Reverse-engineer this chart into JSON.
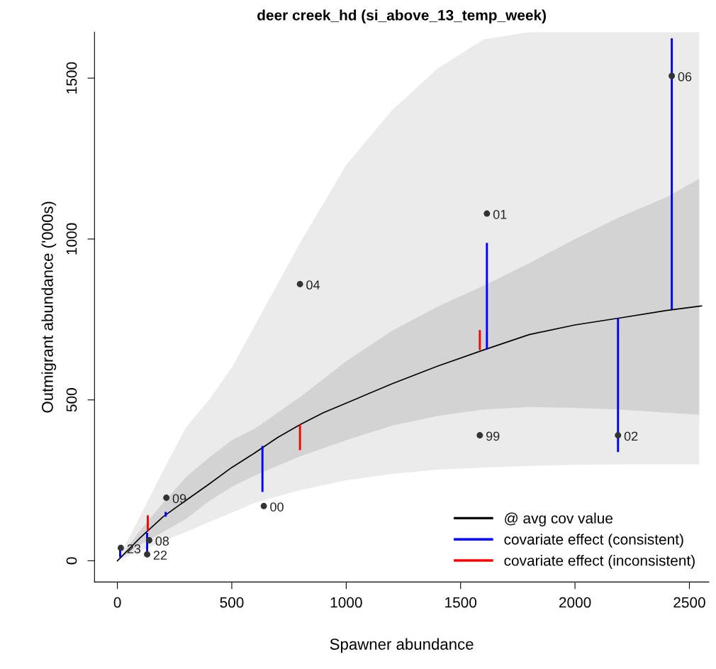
{
  "chart_data": {
    "type": "line",
    "title": "deer creek_hd (si_above_13_temp_week)",
    "xlabel": "Spawner abundance",
    "ylabel": "Outmigrant abundance ('000s)",
    "xlim": [
      -100,
      2585
    ],
    "ylim": [
      -66,
      1643
    ],
    "xticks": [
      0,
      500,
      1000,
      1500,
      2000,
      2500
    ],
    "yticks": [
      0,
      500,
      1000,
      1500
    ],
    "grid": false,
    "legend": "bottom right",
    "series": [
      {
        "color": "#ebebeb",
        "x": [
          0,
          100,
          200,
          300,
          400,
          500,
          600,
          800,
          1000,
          1200,
          1400,
          1600,
          1800,
          2000,
          2200,
          2400,
          2543
        ],
        "values": [
          null,
          null,
          null,
          null,
          null,
          null,
          null,
          null,
          null,
          null,
          null,
          null,
          null,
          null,
          null,
          null,
          null
        ],
        "lower": [
          0,
          30,
          60,
          90,
          120,
          150,
          180,
          220,
          250,
          270,
          283,
          290,
          295,
          298,
          300,
          300,
          300
        ],
        "upper": [
          0,
          140,
          280,
          415,
          500,
          600,
          730,
          990,
          1230,
          1400,
          1530,
          1620,
          1643,
          1643,
          1643,
          1643,
          1643
        ]
      },
      {
        "color": "#d3d3d3",
        "x": [
          0,
          100,
          200,
          300,
          400,
          500,
          600,
          800,
          1000,
          1200,
          1400,
          1600,
          1800,
          2000,
          2200,
          2400,
          2543
        ],
        "values": [
          null,
          null,
          null,
          null,
          null,
          null,
          null,
          null,
          null,
          null,
          null,
          null,
          null,
          null,
          null,
          null,
          null
        ],
        "lower": [
          0,
          50,
          90,
          130,
          185,
          230,
          265,
          325,
          375,
          420,
          450,
          470,
          478,
          475,
          470,
          460,
          454
        ],
        "upper": [
          0,
          95,
          180,
          260,
          320,
          375,
          410,
          510,
          620,
          715,
          790,
          855,
          925,
          1000,
          1070,
          1130,
          1187
        ]
      },
      {
        "name": "@ avg cov value",
        "type": "line",
        "color": "#000000",
        "x": [
          0,
          100,
          200,
          300,
          400,
          500,
          600,
          700,
          800,
          900,
          1000,
          1200,
          1400,
          1600,
          1800,
          2000,
          2200,
          2400,
          2553
        ],
        "values": [
          0,
          72,
          137,
          188,
          238,
          290,
          335,
          383,
          424,
          460,
          490,
          550,
          605,
          655,
          703,
          733,
          755,
          778,
          792
        ]
      },
      {
        "name": "covariate effect (consistent)",
        "type": "bar",
        "color": "#0000ff",
        "x": [
          12,
          130,
          211,
          634,
          1615,
          2188,
          2423
        ],
        "base": [
          11,
          87,
          137,
          357,
          657,
          754,
          781
        ],
        "values": [
          22,
          -58,
          15,
          -143,
          331,
          -416,
          843
        ]
      },
      {
        "name": "covariate effect (inconsistent)",
        "type": "bar",
        "color": "#ff0000",
        "x": [
          133,
          798,
          1584
        ],
        "base": [
          93,
          424,
          655
        ],
        "values": [
          48,
          -80,
          62
        ]
      },
      {
        "type": "scatter",
        "color": "#333333",
        "marker": "circle",
        "x": [
          15,
          130,
          139,
          214,
          640,
          798,
          1615,
          1584,
          2188,
          2423
        ],
        "values": [
          40,
          20,
          64,
          196,
          170,
          860,
          1079,
          390,
          390,
          1507
        ]
      }
    ],
    "annotations": [
      {
        "text": "23",
        "x": 15,
        "y": 40
      },
      {
        "text": "22",
        "x": 130,
        "y": 20
      },
      {
        "text": "08",
        "x": 139,
        "y": 64
      },
      {
        "text": "09",
        "x": 214,
        "y": 196
      },
      {
        "text": "00",
        "x": 640,
        "y": 170
      },
      {
        "text": "04",
        "x": 798,
        "y": 860
      },
      {
        "text": "01",
        "x": 1615,
        "y": 1079
      },
      {
        "text": "99",
        "x": 1584,
        "y": 390
      },
      {
        "text": "02",
        "x": 2188,
        "y": 390
      },
      {
        "text": "06",
        "x": 2423,
        "y": 1507
      }
    ]
  }
}
